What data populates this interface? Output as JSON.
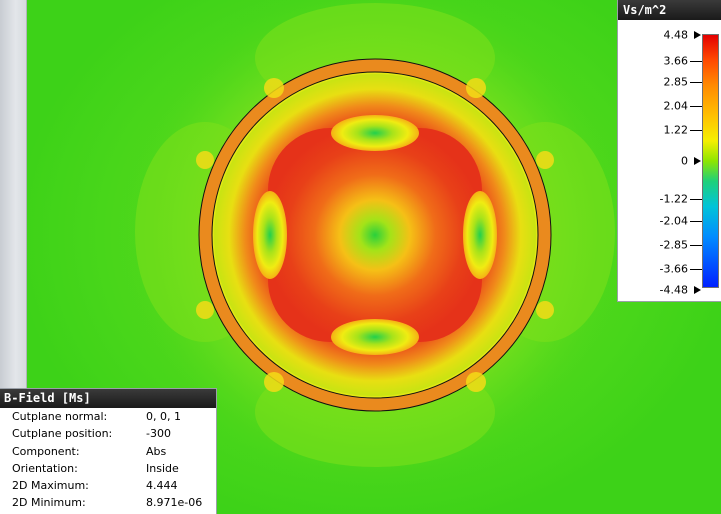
{
  "legend": {
    "unit": "Vs/m^2",
    "ticks": [
      {
        "label": "4.48",
        "marker": "arrow"
      },
      {
        "label": "3.66",
        "marker": "tick"
      },
      {
        "label": "2.85",
        "marker": "tick"
      },
      {
        "label": "2.04",
        "marker": "tick"
      },
      {
        "label": "1.22",
        "marker": "tick"
      },
      {
        "label": "0",
        "marker": "arrow"
      },
      {
        "label": "-1.22",
        "marker": "tick"
      },
      {
        "label": "-2.04",
        "marker": "tick"
      },
      {
        "label": "-2.85",
        "marker": "tick"
      },
      {
        "label": "-3.66",
        "marker": "tick"
      },
      {
        "label": "-4.48",
        "marker": "arrow"
      }
    ]
  },
  "info": {
    "title": "B-Field [Ms]",
    "rows": [
      {
        "key": "Cutplane normal:",
        "value": "0, 0, 1"
      },
      {
        "key": "Cutplane position:",
        "value": "-300"
      },
      {
        "key": "Component:",
        "value": "Abs"
      },
      {
        "key": "Orientation:",
        "value": "Inside"
      },
      {
        "key": "2D Maximum:",
        "value": "4.444"
      },
      {
        "key": "2D Minimum:",
        "value": "8.971e-06"
      }
    ]
  },
  "colors": {
    "background_green": "#3dd218",
    "ring_orange": "#e98a1e",
    "hot_red": "#e8361a",
    "legend_title_bg": "#1a1a1a"
  }
}
